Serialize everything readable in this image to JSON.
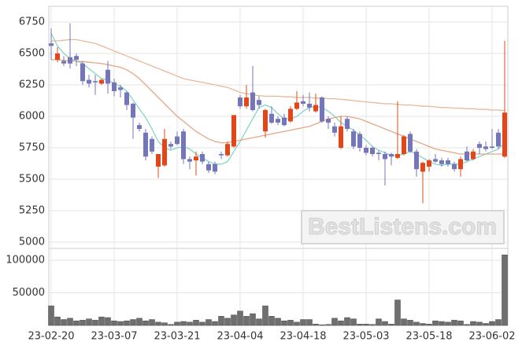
{
  "watermark": "BestListens.com",
  "chart_data": [
    {
      "type": "candlestick",
      "categories": [
        "23-02-20",
        null,
        null,
        null,
        null,
        null,
        null,
        null,
        null,
        null,
        "23-03-07",
        null,
        null,
        null,
        null,
        null,
        null,
        null,
        null,
        null,
        "23-03-21",
        null,
        null,
        null,
        null,
        null,
        null,
        null,
        null,
        null,
        "23-04-04",
        null,
        null,
        null,
        null,
        null,
        null,
        null,
        null,
        null,
        "23-04-18",
        null,
        null,
        null,
        null,
        null,
        null,
        null,
        null,
        null,
        "23-05-03",
        null,
        null,
        null,
        null,
        null,
        null,
        null,
        null,
        null,
        "23-05-18",
        null,
        null,
        null,
        null,
        null,
        null,
        null,
        null,
        null,
        "23-06-02",
        null,
        null
      ],
      "open": [
        6580,
        6450,
        6440,
        6470,
        6480,
        6420,
        6290,
        6280,
        6260,
        6370,
        6270,
        6230,
        6190,
        6100,
        5930,
        5870,
        5820,
        5600,
        5610,
        5780,
        5840,
        5880,
        5660,
        5650,
        5700,
        5620,
        5620,
        5700,
        5690,
        5760,
        6150,
        6080,
        6190,
        6130,
        5880,
        6020,
        5980,
        5990,
        5960,
        6060,
        6120,
        6100,
        6040,
        6150,
        5980,
        5920,
        5750,
        5980,
        5880,
        5860,
        5750,
        5750,
        5710,
        5700,
        5700,
        5670,
        5700,
        5860,
        5720,
        5560,
        5600,
        5660,
        5650,
        5650,
        5620,
        5580,
        5720,
        5660,
        5780,
        5760,
        5760,
        5870,
        5680
      ],
      "high": [
        6700,
        6550,
        6480,
        6740,
        6500,
        6440,
        6330,
        6330,
        6300,
        6440,
        6300,
        6250,
        6200,
        6110,
        5950,
        5900,
        5840,
        5700,
        5900,
        5800,
        5880,
        5900,
        5680,
        5720,
        5720,
        5640,
        5640,
        5720,
        5800,
        6010,
        6170,
        6250,
        6400,
        6160,
        6060,
        6080,
        6000,
        6020,
        6080,
        6200,
        6170,
        6190,
        6180,
        6160,
        6000,
        5950,
        6000,
        6000,
        5900,
        5880,
        5770,
        5760,
        5730,
        5720,
        5710,
        6120,
        5850,
        5880,
        5740,
        5640,
        5660,
        5700,
        5670,
        5670,
        5640,
        5680,
        5760,
        5740,
        5800,
        5800,
        5900,
        5900,
        6600
      ],
      "low": [
        6450,
        6430,
        6400,
        6380,
        6400,
        6250,
        6230,
        6170,
        6250,
        6180,
        6160,
        6150,
        6050,
        5820,
        5880,
        5650,
        5700,
        5510,
        5600,
        5740,
        5770,
        5620,
        5580,
        5530,
        5620,
        5550,
        5540,
        5660,
        5680,
        5750,
        6060,
        6060,
        6040,
        6060,
        5830,
        5940,
        5930,
        5920,
        5950,
        6050,
        6080,
        6040,
        6030,
        5950,
        5900,
        5840,
        5740,
        5880,
        5740,
        5720,
        5690,
        5680,
        5650,
        5450,
        5610,
        5660,
        5690,
        5710,
        5520,
        5310,
        5560,
        5630,
        5600,
        5600,
        5560,
        5520,
        5640,
        5650,
        5700,
        5720,
        5740,
        5740,
        5670
      ],
      "close": [
        6560,
        6500,
        6420,
        6420,
        6450,
        6280,
        6260,
        6270,
        6290,
        6260,
        6200,
        6210,
        6090,
        5990,
        5900,
        5680,
        5720,
        5700,
        5820,
        5760,
        5780,
        5660,
        5640,
        5680,
        5640,
        5570,
        5560,
        5690,
        5780,
        6010,
        6080,
        6150,
        6050,
        6090,
        6050,
        5950,
        5950,
        5930,
        6060,
        6110,
        6100,
        6070,
        6090,
        5960,
        5950,
        5870,
        5920,
        5900,
        5760,
        5750,
        5710,
        5700,
        5700,
        5660,
        5680,
        5700,
        5840,
        5720,
        5580,
        5630,
        5650,
        5640,
        5620,
        5620,
        5580,
        5660,
        5650,
        5720,
        5750,
        5740,
        5750,
        5760,
        6030
      ],
      "up_color": "#e0481c",
      "down_color": "#7476b8",
      "series": [
        {
          "color": "#86d4c4",
          "values": [
            6660,
            6560,
            6500,
            6460,
            6440,
            6420,
            6380,
            6340,
            6300,
            6290,
            6260,
            6240,
            6200,
            6130,
            6060,
            5990,
            5900,
            5800,
            5750,
            5730,
            5750,
            5760,
            5740,
            5700,
            5670,
            5640,
            5620,
            5620,
            5640,
            5720,
            5800,
            5890,
            5980,
            6070,
            6090,
            6070,
            6020,
            5980,
            5980,
            6000,
            6040,
            6070,
            6080,
            6070,
            6040,
            6000,
            5950,
            5920,
            5890,
            5850,
            5810,
            5760,
            5730,
            5710,
            5690,
            5690,
            5700,
            5720,
            5700,
            5670,
            5640,
            5620,
            5610,
            5620,
            5620,
            5620,
            5640,
            5660,
            5680,
            5700,
            5720,
            5740,
            5790
          ]
        },
        {
          "color": "#e9b899",
          "values": [
            6600,
            6600,
            6605,
            6610,
            6610,
            6600,
            6590,
            6580,
            6560,
            6540,
            6520,
            6500,
            6480,
            6460,
            6440,
            6420,
            6400,
            6380,
            6360,
            6340,
            6320,
            6300,
            6290,
            6280,
            6270,
            6260,
            6250,
            6240,
            6230,
            6210,
            6190,
            6180,
            6170,
            6165,
            6160,
            6160,
            6160,
            6155,
            6155,
            6150,
            6150,
            6150,
            6145,
            6145,
            6140,
            6140,
            6135,
            6130,
            6125,
            6120,
            6115,
            6110,
            6105,
            6100,
            6100,
            6095,
            6090,
            6090,
            6085,
            6080,
            6080,
            6075,
            6070,
            6070,
            6065,
            6065,
            6060,
            6060,
            6055,
            6055,
            6050,
            6050,
            6045
          ]
        },
        {
          "color": "#e6a684",
          "values": [
            6450,
            6450,
            6445,
            6440,
            6440,
            6435,
            6430,
            6425,
            6420,
            6410,
            6400,
            6390,
            6370,
            6340,
            6300,
            6250,
            6200,
            6150,
            6100,
            6050,
            6000,
            5960,
            5920,
            5880,
            5850,
            5820,
            5800,
            5790,
            5790,
            5800,
            5810,
            5820,
            5830,
            5840,
            5850,
            5860,
            5870,
            5880,
            5890,
            5900,
            5910,
            5920,
            5940,
            5960,
            5980,
            5990,
            6000,
            6000,
            5990,
            5980,
            5960,
            5940,
            5920,
            5900,
            5880,
            5860,
            5840,
            5820,
            5800,
            5780,
            5760,
            5740,
            5730,
            5720,
            5710,
            5700,
            5700,
            5700,
            5700,
            5700,
            5700,
            5700,
            5700
          ]
        }
      ],
      "ylim": [
        4950,
        6875
      ],
      "yticks": [
        5000,
        5250,
        5500,
        5750,
        6000,
        6250,
        6500,
        6750
      ],
      "grid": true
    },
    {
      "type": "bar",
      "values": [
        30000,
        13000,
        9000,
        11000,
        7000,
        8000,
        10000,
        8000,
        13000,
        12000,
        7000,
        6000,
        7000,
        9000,
        11000,
        7000,
        9000,
        5000,
        4000,
        1500,
        5000,
        6000,
        5000,
        8000,
        5000,
        9000,
        6000,
        14000,
        11000,
        16000,
        22000,
        14000,
        18000,
        10000,
        30000,
        14000,
        11000,
        7000,
        8000,
        5000,
        9000,
        9000,
        2000,
        1000,
        1500,
        11000,
        7000,
        12000,
        10000,
        2000,
        2000,
        1500,
        10000,
        6000,
        2000,
        39000,
        10000,
        8000,
        5000,
        3000,
        2000,
        7000,
        6000,
        5000,
        8000,
        7000,
        1500,
        6000,
        5000,
        3000,
        6000,
        9000,
        108000
      ],
      "color": "#6f6f6f",
      "ylim": [
        0,
        118000
      ],
      "yticks": [
        50000,
        100000
      ],
      "grid": true
    }
  ]
}
